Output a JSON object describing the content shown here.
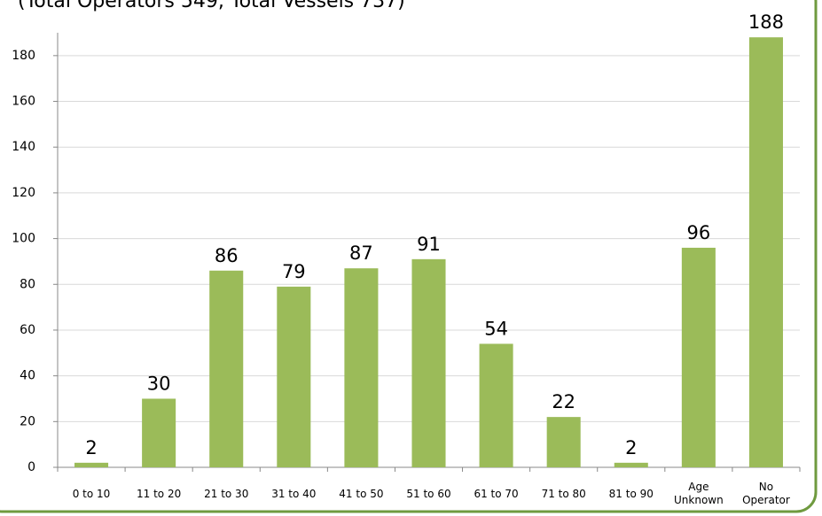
{
  "chart_data": {
    "type": "bar",
    "subtitle": "(Total Operators 549, Total Vessels 737)",
    "categories": [
      "0 to 10",
      "11 to 20",
      "21 to 30",
      "31 to 40",
      "41 to 50",
      "51 to 60",
      "61 to 70",
      "71 to 80",
      "81 to 90",
      "Age Unknown",
      "No Operator"
    ],
    "values": [
      2,
      30,
      86,
      79,
      87,
      91,
      54,
      22,
      2,
      96,
      188
    ],
    "color": "#9bbb59",
    "ylim": [
      0,
      190
    ],
    "yticks": [
      0,
      20,
      40,
      60,
      80,
      100,
      120,
      140,
      160,
      180
    ],
    "grid": true
  }
}
